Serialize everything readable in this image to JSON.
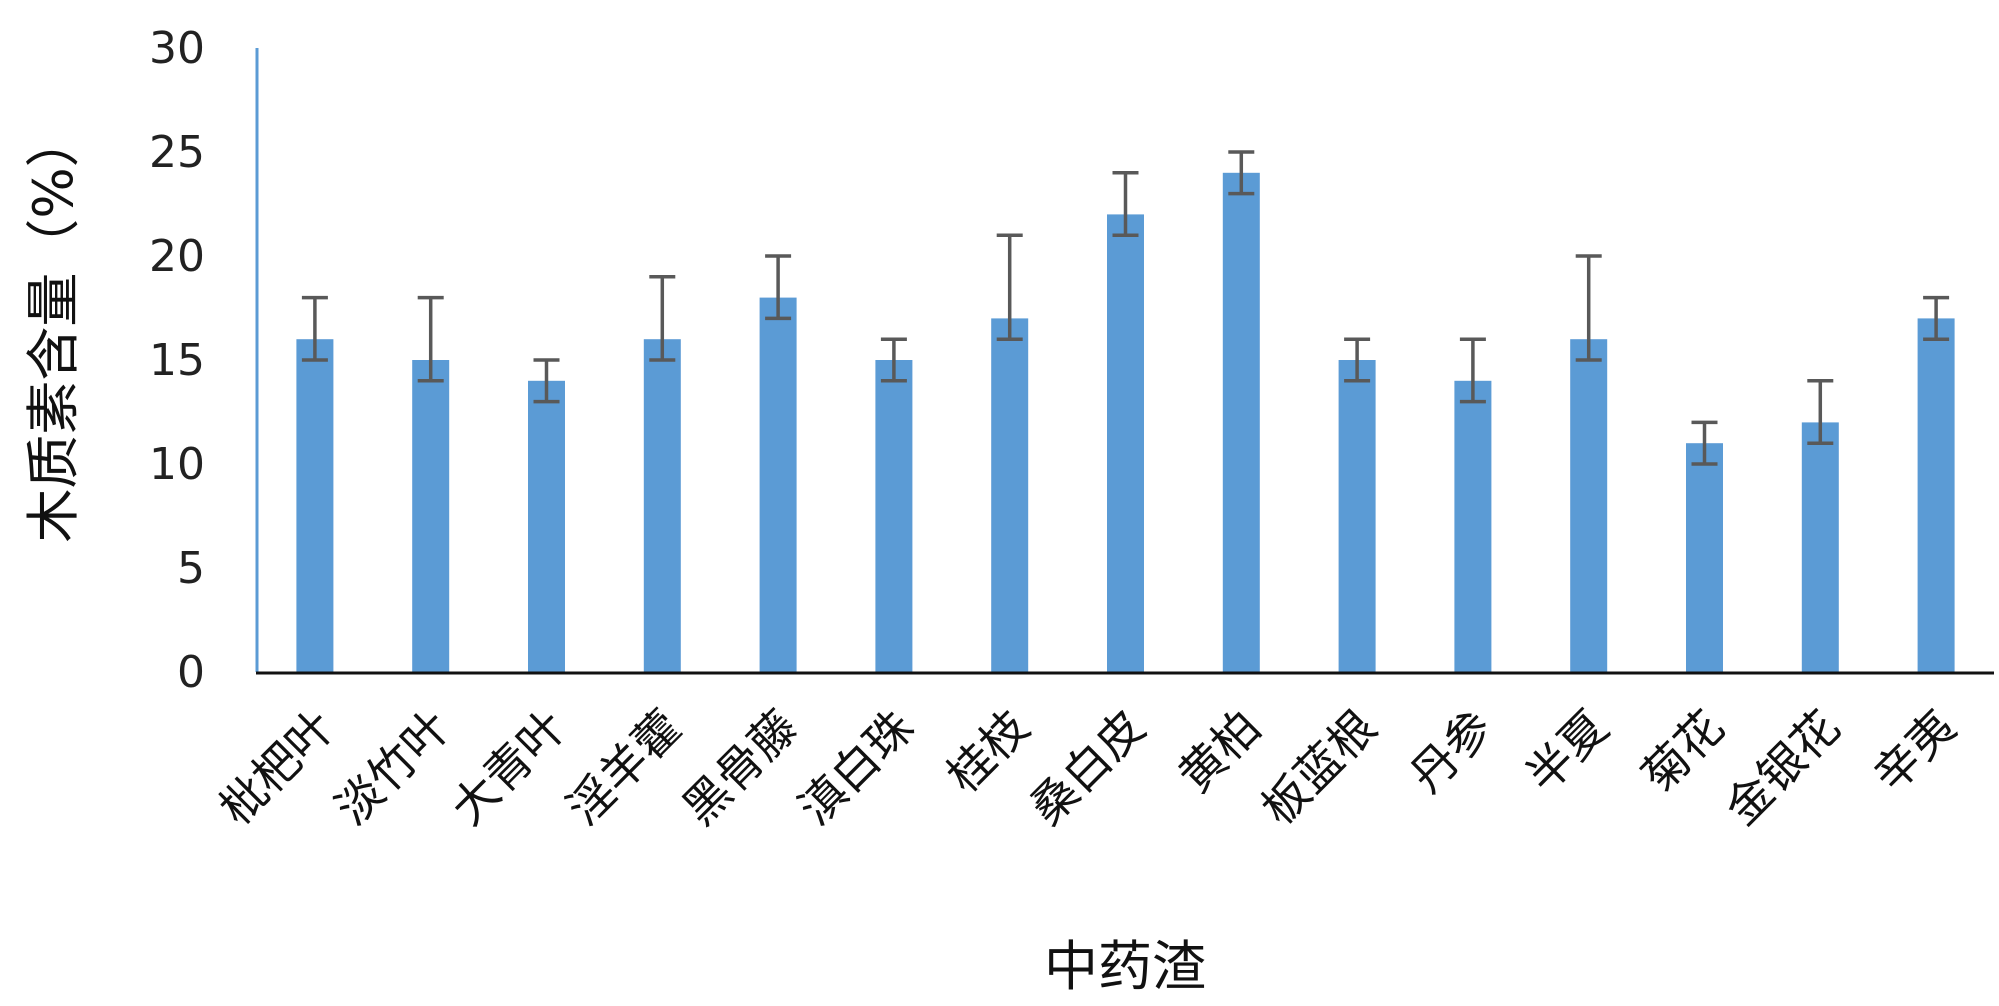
{
  "chart_data": {
    "type": "bar",
    "title": "",
    "xlabel": "中药渣",
    "ylabel": "木质素含量（%）",
    "ylim": [
      0,
      30
    ],
    "yticks": [
      0,
      5,
      10,
      15,
      20,
      25,
      30
    ],
    "categories": [
      "枇杷叶",
      "淡竹叶",
      "大青叶",
      "淫羊藿",
      "黑骨藤",
      "滇白珠",
      "桂枝",
      "桑白皮",
      "黄柏",
      "板蓝根",
      "丹参",
      "半夏",
      "菊花",
      "金银花",
      "辛夷"
    ],
    "series": [
      {
        "values": [
          16,
          15,
          14,
          16,
          18,
          15,
          17,
          22,
          24,
          15,
          14,
          16,
          11,
          12,
          17
        ],
        "error_low": [
          15,
          14,
          13,
          15,
          17,
          14,
          16,
          21,
          23,
          14,
          13,
          15,
          10,
          11,
          16
        ],
        "error_high": [
          18,
          18,
          15,
          19,
          20,
          16,
          21,
          24,
          25,
          16,
          16,
          20,
          12,
          14,
          18
        ],
        "color": "#5b9bd5"
      }
    ],
    "error_bar_color": "#595959",
    "axis_color": "#5b9bd5",
    "baseline_color": "#111111",
    "grid": false,
    "legend": "none"
  }
}
